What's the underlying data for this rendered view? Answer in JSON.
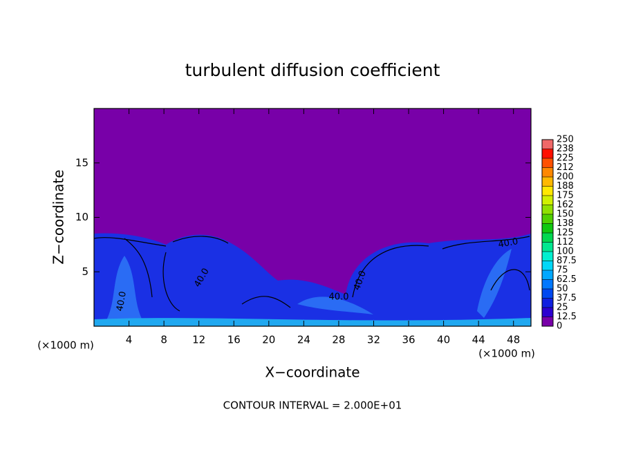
{
  "chart_data": {
    "type": "contour",
    "title": "turbulent diffusion coefficient",
    "x_label": "X−coordinate",
    "y_label": "Z−coordinate",
    "x_unit": "(×1000 m)",
    "xlim": [
      0,
      50
    ],
    "xticks": [
      4,
      8,
      12,
      16,
      20,
      24,
      28,
      32,
      36,
      40,
      44,
      48
    ],
    "ylim": [
      0,
      20
    ],
    "yticks": [
      5,
      10,
      15
    ],
    "colorbar": {
      "levels": [
        0,
        12.5,
        25,
        37.5,
        50,
        62.5,
        75,
        87.5,
        100,
        112,
        125,
        138,
        150,
        162,
        175,
        188,
        200,
        212,
        225,
        238,
        250
      ],
      "colors": [
        "#7800a8",
        "#2c00d0",
        "#1020e0",
        "#0048f0",
        "#0078ff",
        "#00a8ff",
        "#00d8f8",
        "#00f0d0",
        "#00e890",
        "#00d850",
        "#10c810",
        "#50d000",
        "#90e000",
        "#d0f000",
        "#ffe800",
        "#ffb800",
        "#ff8800",
        "#ff5000",
        "#ff1000",
        "#f06868"
      ]
    },
    "contour_labels": [
      "40.0",
      "40.0",
      "40.0",
      "40.0",
      "40.0"
    ],
    "annotation": "CONTOUR INTERVAL = 2.000E+01"
  }
}
